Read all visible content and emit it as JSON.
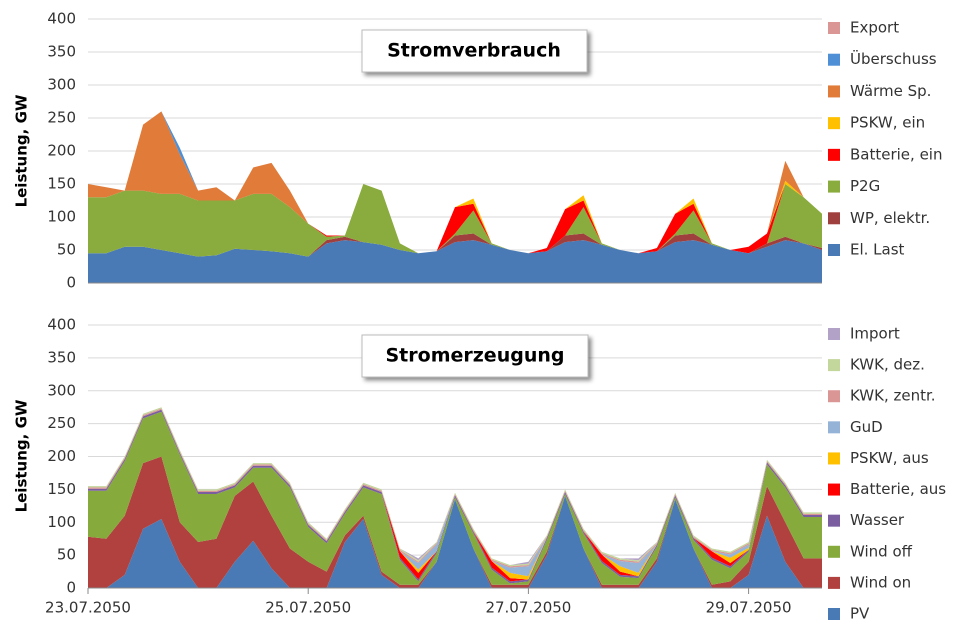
{
  "chart_data": [
    {
      "type": "stacked_area",
      "title": "Stromverbrauch",
      "y_label": "Leistung, GW",
      "ylim": [
        0,
        400
      ],
      "yticks": [
        0,
        50,
        100,
        150,
        200,
        250,
        300,
        350,
        400
      ],
      "grid": true,
      "legend": "right",
      "series": [
        {
          "name": "El. Last",
          "color": "#4a7ab5",
          "values": [
            45,
            45,
            55,
            55,
            50,
            45,
            40,
            42,
            52,
            50,
            48,
            45,
            40,
            60,
            65,
            62,
            58,
            50,
            45,
            48,
            62,
            65,
            58,
            50,
            45,
            48,
            62,
            65,
            58,
            50,
            45,
            48,
            62,
            65,
            58,
            50,
            45,
            55,
            65,
            60,
            50
          ]
        },
        {
          "name": "WP, elektr.",
          "color": "#a0403e",
          "values": [
            0,
            0,
            0,
            0,
            0,
            0,
            0,
            0,
            0,
            0,
            0,
            0,
            0,
            5,
            5,
            0,
            0,
            0,
            0,
            0,
            10,
            10,
            0,
            0,
            0,
            0,
            10,
            10,
            0,
            0,
            0,
            0,
            10,
            10,
            0,
            0,
            0,
            5,
            5,
            0,
            3
          ]
        },
        {
          "name": "P2G",
          "color": "#8aab3e",
          "values": [
            85,
            85,
            85,
            85,
            85,
            90,
            85,
            83,
            73,
            85,
            87,
            70,
            50,
            5,
            2,
            88,
            82,
            10,
            0,
            0,
            3,
            35,
            2,
            0,
            0,
            0,
            0,
            40,
            2,
            0,
            0,
            0,
            3,
            35,
            2,
            0,
            0,
            0,
            80,
            70,
            52
          ]
        },
        {
          "name": "Batterie, ein",
          "color": "#ff0000",
          "values": [
            0,
            0,
            0,
            0,
            0,
            0,
            0,
            0,
            0,
            0,
            0,
            0,
            0,
            2,
            0,
            0,
            0,
            0,
            0,
            0,
            40,
            10,
            0,
            0,
            0,
            5,
            40,
            10,
            0,
            0,
            0,
            5,
            30,
            10,
            0,
            0,
            10,
            15,
            0,
            0,
            0
          ]
        },
        {
          "name": "PSKW, ein",
          "color": "#ffc000",
          "values": [
            0,
            0,
            0,
            0,
            0,
            0,
            0,
            0,
            0,
            0,
            0,
            0,
            0,
            0,
            0,
            0,
            0,
            0,
            0,
            0,
            0,
            8,
            0,
            0,
            0,
            0,
            0,
            8,
            0,
            0,
            0,
            0,
            0,
            8,
            0,
            0,
            0,
            0,
            5,
            0,
            0
          ]
        },
        {
          "name": "Wärme Sp.",
          "color": "#e07b39",
          "values": [
            20,
            15,
            0,
            100,
            125,
            60,
            15,
            20,
            0,
            40,
            47,
            25,
            0,
            0,
            0,
            0,
            0,
            0,
            0,
            0,
            0,
            0,
            0,
            0,
            0,
            0,
            0,
            0,
            0,
            0,
            0,
            0,
            0,
            0,
            0,
            0,
            0,
            0,
            30,
            0,
            0
          ]
        },
        {
          "name": "Überschuss",
          "color": "#4f8fd6",
          "values": [
            0,
            0,
            0,
            0,
            0,
            10,
            0,
            0,
            0,
            0,
            0,
            0,
            0,
            0,
            0,
            0,
            0,
            0,
            0,
            0,
            0,
            0,
            0,
            0,
            0,
            0,
            0,
            0,
            0,
            0,
            0,
            0,
            0,
            0,
            0,
            0,
            0,
            0,
            0,
            0,
            0
          ]
        },
        {
          "name": "Export",
          "color": "#d99694",
          "values": [
            0,
            0,
            0,
            0,
            0,
            0,
            0,
            0,
            0,
            0,
            0,
            0,
            0,
            0,
            0,
            0,
            0,
            0,
            0,
            0,
            0,
            0,
            0,
            0,
            0,
            0,
            0,
            0,
            0,
            0,
            0,
            0,
            0,
            0,
            0,
            0,
            0,
            0,
            0,
            0,
            0
          ]
        }
      ]
    },
    {
      "type": "stacked_area",
      "title": "Stromerzeugung",
      "y_label": "Leistung, GW",
      "categories": [
        "23.07.2050",
        null,
        null,
        null,
        null,
        null,
        null,
        null,
        null,
        null,
        null,
        null,
        "25.07.2050",
        null,
        null,
        null,
        null,
        null,
        null,
        null,
        null,
        null,
        null,
        null,
        "27.07.2050",
        null,
        null,
        null,
        null,
        null,
        null,
        null,
        null,
        null,
        null,
        null,
        "29.07.2050",
        null,
        null,
        null,
        null
      ],
      "ylim": [
        0,
        400
      ],
      "yticks": [
        0,
        50,
        100,
        150,
        200,
        250,
        300,
        350,
        400
      ],
      "grid": true,
      "legend": "right",
      "series": [
        {
          "name": "PV",
          "color": "#4a7ab5",
          "values": [
            0,
            0,
            20,
            90,
            105,
            40,
            0,
            0,
            40,
            72,
            30,
            0,
            0,
            0,
            70,
            105,
            20,
            0,
            0,
            40,
            135,
            60,
            0,
            0,
            0,
            50,
            140,
            60,
            0,
            0,
            0,
            40,
            135,
            60,
            0,
            0,
            20,
            110,
            40,
            0,
            0
          ]
        },
        {
          "name": "Wind on",
          "color": "#b0413e",
          "values": [
            78,
            75,
            90,
            100,
            95,
            60,
            70,
            75,
            100,
            90,
            80,
            60,
            40,
            25,
            10,
            5,
            5,
            5,
            5,
            0,
            0,
            0,
            5,
            5,
            5,
            5,
            0,
            0,
            5,
            5,
            5,
            5,
            0,
            0,
            5,
            10,
            20,
            45,
            60,
            45,
            45
          ]
        },
        {
          "name": "Wind off",
          "color": "#86aa3c",
          "values": [
            70,
            73,
            83,
            68,
            68,
            103,
            73,
            68,
            13,
            21,
            73,
            93,
            53,
            43,
            33,
            43,
            118,
            38,
            5,
            13,
            3,
            23,
            23,
            2,
            5,
            18,
            3,
            23,
            33,
            12,
            10,
            18,
            3,
            13,
            38,
            20,
            15,
            33,
            53,
            63,
            63
          ]
        },
        {
          "name": "Wasser",
          "color": "#7a5ea0",
          "values": [
            3,
            3,
            3,
            3,
            3,
            3,
            3,
            3,
            3,
            3,
            3,
            3,
            3,
            3,
            3,
            3,
            3,
            3,
            3,
            3,
            3,
            3,
            3,
            3,
            3,
            3,
            3,
            3,
            3,
            3,
            3,
            3,
            3,
            3,
            3,
            3,
            3,
            3,
            3,
            3,
            3
          ]
        },
        {
          "name": "Batterie, aus",
          "color": "#ff0000",
          "values": [
            0,
            0,
            0,
            0,
            0,
            0,
            0,
            0,
            0,
            0,
            0,
            0,
            0,
            0,
            0,
            0,
            0,
            10,
            10,
            0,
            0,
            0,
            10,
            5,
            0,
            0,
            0,
            0,
            10,
            5,
            0,
            0,
            0,
            0,
            10,
            5,
            0,
            0,
            0,
            0,
            0
          ]
        },
        {
          "name": "PSKW, aus",
          "color": "#ffc000",
          "values": [
            0,
            0,
            0,
            0,
            0,
            0,
            0,
            0,
            0,
            0,
            0,
            0,
            0,
            0,
            0,
            0,
            0,
            0,
            5,
            0,
            0,
            0,
            0,
            8,
            5,
            0,
            0,
            0,
            0,
            8,
            5,
            0,
            0,
            0,
            0,
            8,
            3,
            0,
            0,
            0,
            0
          ]
        },
        {
          "name": "GuD",
          "color": "#95b3d7",
          "values": [
            0,
            0,
            0,
            0,
            0,
            0,
            0,
            0,
            0,
            0,
            0,
            0,
            0,
            0,
            0,
            0,
            0,
            0,
            10,
            10,
            0,
            0,
            0,
            8,
            15,
            0,
            0,
            0,
            0,
            8,
            15,
            0,
            0,
            0,
            0,
            5,
            5,
            0,
            0,
            0,
            0
          ]
        },
        {
          "name": "KWK, zentr.",
          "color": "#d99694",
          "values": [
            2,
            2,
            2,
            2,
            2,
            2,
            2,
            2,
            2,
            2,
            2,
            2,
            2,
            2,
            2,
            2,
            2,
            2,
            2,
            2,
            2,
            2,
            2,
            2,
            2,
            2,
            2,
            2,
            2,
            2,
            2,
            2,
            2,
            2,
            2,
            2,
            2,
            2,
            2,
            2,
            2
          ]
        },
        {
          "name": "KWK, dez.",
          "color": "#c3d69b",
          "values": [
            2,
            2,
            2,
            2,
            2,
            2,
            2,
            2,
            2,
            2,
            2,
            2,
            2,
            2,
            2,
            2,
            2,
            2,
            2,
            2,
            2,
            2,
            2,
            2,
            2,
            2,
            2,
            2,
            2,
            2,
            2,
            2,
            2,
            2,
            2,
            2,
            2,
            2,
            2,
            2,
            2
          ]
        },
        {
          "name": "Import",
          "color": "#b3a2c7",
          "values": [
            0,
            0,
            0,
            0,
            0,
            0,
            0,
            0,
            0,
            0,
            0,
            0,
            0,
            0,
            0,
            0,
            0,
            0,
            3,
            0,
            0,
            0,
            0,
            0,
            3,
            0,
            0,
            0,
            0,
            0,
            3,
            0,
            0,
            0,
            0,
            0,
            0,
            0,
            0,
            0,
            0
          ]
        }
      ]
    }
  ]
}
